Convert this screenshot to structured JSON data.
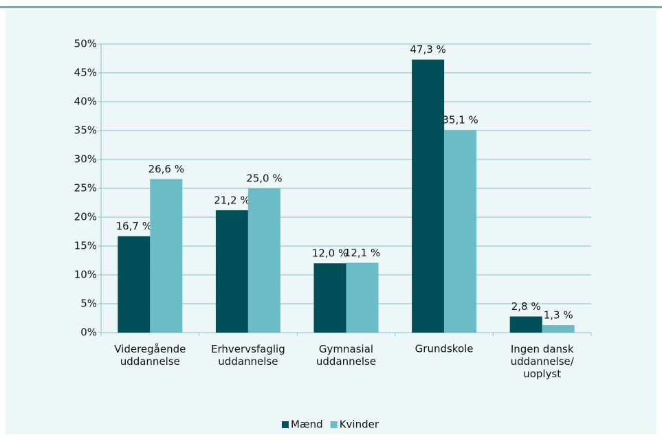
{
  "chart_data": {
    "type": "bar",
    "categories": [
      "Videregående\nuddannelse",
      "Erhvervsfaglig\nuddannelse",
      "Gymnasial\nuddannelse",
      "Grundskole",
      "Ingen dansk\nuddannelse/\nuoplyst"
    ],
    "series": [
      {
        "name": "Mænd",
        "color": "#004f59",
        "values": [
          16.7,
          21.2,
          12.0,
          47.3,
          2.8
        ],
        "value_labels": [
          "16,7 %",
          "21,2 %",
          "12,0 %",
          "47,3 %",
          "2,8 %"
        ]
      },
      {
        "name": "Kvinder",
        "color": "#6bbcc7",
        "values": [
          26.6,
          25.0,
          12.1,
          35.1,
          1.3
        ],
        "value_labels": [
          "26,6 %",
          "25,0 %",
          "12,1 %",
          "35,1 %",
          "1,3 %"
        ]
      }
    ],
    "ylim": [
      0,
      50
    ],
    "yticks": [
      {
        "value": 0,
        "label": "0%"
      },
      {
        "value": 5,
        "label": "5%"
      },
      {
        "value": 10,
        "label": "10%"
      },
      {
        "value": 15,
        "label": "15%"
      },
      {
        "value": 20,
        "label": "20%"
      },
      {
        "value": 25,
        "label": "25%"
      },
      {
        "value": 30,
        "label": "30%"
      },
      {
        "value": 35,
        "label": "35%"
      },
      {
        "value": 40,
        "label": "40%"
      },
      {
        "value": 45,
        "label": "45%"
      },
      {
        "value": 50,
        "label": "50%"
      }
    ],
    "grid": true,
    "legend": "bottom"
  }
}
